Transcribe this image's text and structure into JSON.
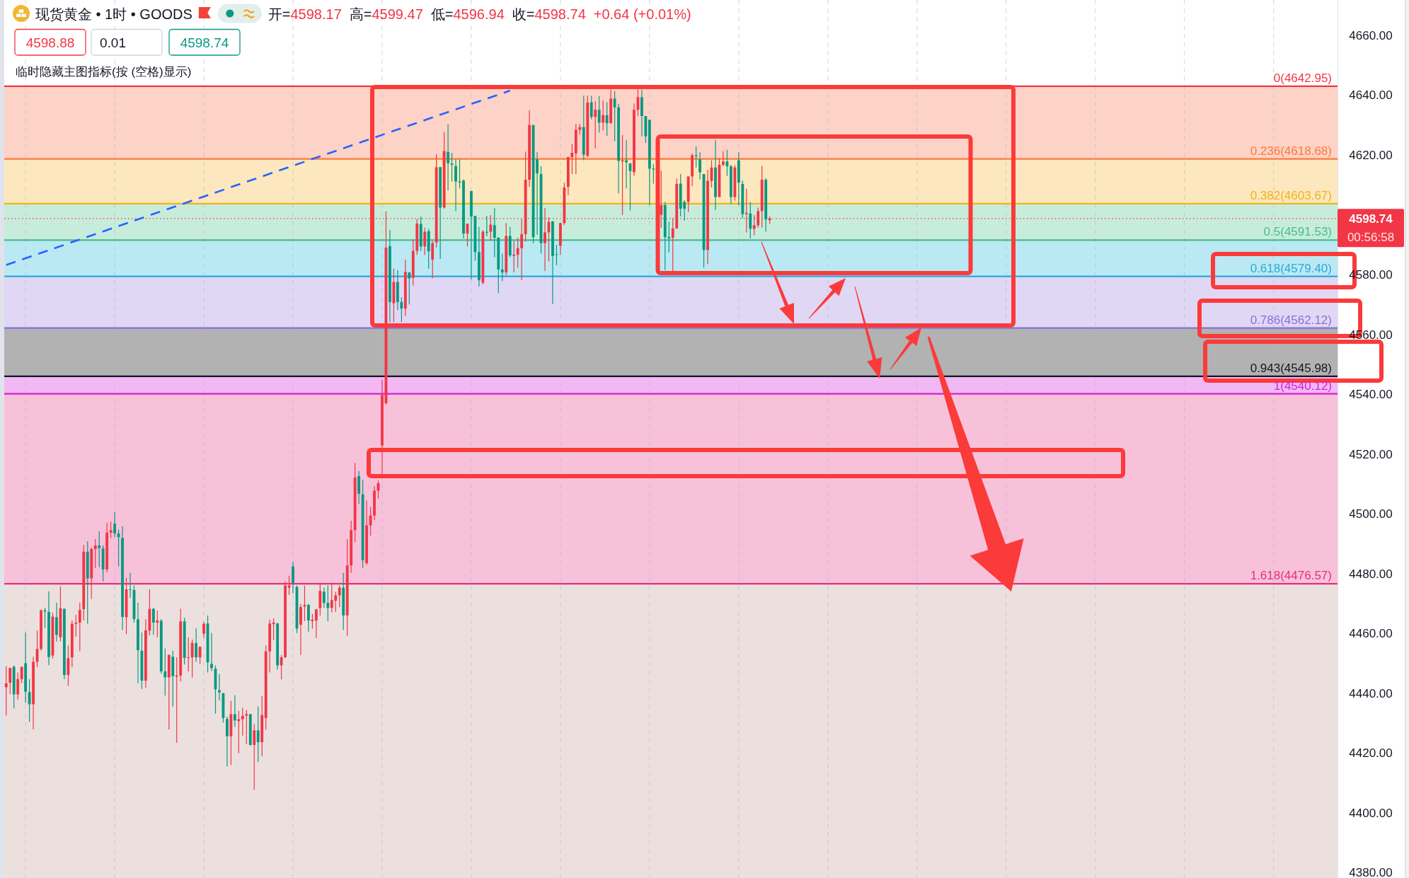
{
  "chart_data": {
    "type": "candlestick",
    "title": "现货黄金 • 1时 • GOODS",
    "subtitle": "临时隐藏主图指标(按 (空格)显示)",
    "annotations": [
      "开=4598.17",
      "高=4599.47",
      "低=4596.94",
      "收=4598.74",
      "+0.64 (+0.01%)",
      "4598.88",
      "0.01",
      "4598.74",
      "00:56:58"
    ],
    "categories": [
      null,
      null,
      null,
      null,
      null,
      null,
      null,
      null,
      null,
      null,
      null,
      null,
      null,
      null,
      null,
      null,
      null,
      null,
      null,
      null,
      null,
      null,
      null,
      null,
      null,
      null,
      null,
      null,
      null,
      null,
      null,
      null,
      null,
      null,
      null,
      null,
      null,
      null,
      null,
      null,
      null,
      null,
      null,
      null,
      null,
      null,
      null,
      null,
      null,
      null,
      null,
      null,
      null,
      null,
      null,
      null,
      null,
      null,
      null,
      null,
      null,
      null,
      null,
      null,
      null,
      null,
      null,
      null,
      null,
      null,
      null,
      null,
      null,
      null,
      null,
      null,
      null,
      null,
      null,
      null,
      null,
      null,
      null,
      null,
      null,
      null,
      null,
      null,
      null,
      null,
      null,
      null,
      null,
      null,
      null,
      null,
      null,
      null,
      null,
      null,
      null,
      null,
      null,
      null,
      null,
      null,
      null,
      null,
      null,
      null,
      null,
      null,
      null,
      null,
      null,
      null,
      null,
      null,
      null,
      null,
      null,
      null,
      null,
      null,
      null,
      null,
      null,
      null,
      null,
      null,
      null,
      null,
      null,
      null,
      null,
      null,
      null,
      null,
      null,
      null,
      null,
      null,
      null,
      null,
      null,
      null,
      null,
      null,
      null,
      null,
      null,
      null,
      null,
      null,
      null,
      null,
      null,
      null,
      null,
      null,
      null,
      null,
      null,
      null,
      null,
      null,
      null,
      null,
      null,
      null,
      null,
      null,
      null,
      null,
      null,
      null,
      null,
      null,
      null,
      null,
      null,
      null,
      null,
      null,
      null,
      null,
      null,
      null,
      null,
      null,
      null,
      null,
      null,
      null,
      null,
      null,
      null,
      null,
      null,
      null,
      null,
      null,
      null,
      null,
      null,
      null,
      null,
      null,
      null,
      null,
      null,
      null,
      null,
      null,
      null,
      null,
      null,
      null,
      null,
      null,
      null,
      null,
      null,
      null,
      null,
      null,
      null,
      null,
      null,
      null,
      null,
      null,
      null,
      null,
      null,
      null,
      null,
      null,
      null,
      null,
      null,
      null,
      null,
      null,
      null,
      null,
      null,
      null,
      null,
      null,
      null,
      null,
      null,
      null,
      null,
      null,
      null,
      null,
      null,
      null,
      null,
      null,
      null,
      null,
      null,
      null,
      null,
      null,
      null,
      null,
      null,
      null,
      null,
      null,
      null,
      null,
      null,
      null,
      null,
      null,
      null,
      null,
      null,
      null,
      null,
      null,
      null,
      null,
      null,
      null,
      null,
      null,
      null,
      null,
      null,
      null,
      null,
      null,
      null,
      null,
      null,
      null,
      null,
      null,
      null,
      null,
      null,
      null,
      null,
      null,
      null,
      null,
      null,
      null,
      null,
      null,
      null,
      null,
      null,
      null,
      null,
      null,
      null,
      null,
      null,
      null,
      null,
      null,
      null,
      null,
      null,
      null,
      null,
      null,
      null,
      null,
      null,
      null,
      null,
      null,
      null,
      null,
      null,
      null
    ],
    "ohlc": [
      [
        4442.0,
        4449.0,
        4432.5,
        4443.3
      ],
      [
        4443.5,
        4448.6,
        4439.7,
        4448.4
      ],
      [
        4448.8,
        4449.3,
        4434.9,
        4439.6
      ],
      [
        4439.6,
        4446.9,
        4437.8,
        4444.7
      ],
      [
        4444.7,
        4448.9,
        4443.4,
        4448.8
      ],
      [
        4450.0,
        4460.3,
        4436.8,
        4440.5
      ],
      [
        4440.4,
        4444.7,
        4430.4,
        4436.3
      ],
      [
        4436.3,
        4452.2,
        4427.9,
        4450.5
      ],
      [
        4450.5,
        4461.0,
        4448.7,
        4454.8
      ],
      [
        4454.8,
        4468.0,
        4454.2,
        4467.7
      ],
      [
        4467.7,
        4468.5,
        4461.8,
        4467.3
      ],
      [
        4467.2,
        4474.1,
        4449.4,
        4452.1
      ],
      [
        4452.6,
        4466.9,
        4451.6,
        4465.6
      ],
      [
        4465.4,
        4470.3,
        4457.3,
        4459.5
      ],
      [
        4458.7,
        4475.7,
        4457.3,
        4468.4
      ],
      [
        4468.2,
        4468.4,
        4444.7,
        4446.1
      ],
      [
        4446.1,
        4455.9,
        4442.5,
        4451.7
      ],
      [
        4452.0,
        4464.4,
        4448.7,
        4463.2
      ],
      [
        4463.2,
        4466.2,
        4458.9,
        4463.6
      ],
      [
        4463.6,
        4470.3,
        4454.0,
        4467.8
      ],
      [
        4468.1,
        4489.6,
        4464.4,
        4487.3
      ],
      [
        4487.3,
        4490.8,
        4463.2,
        4478.4
      ],
      [
        4478.4,
        4488.7,
        4471.5,
        4488.2
      ],
      [
        4488.2,
        4491.5,
        4481.8,
        4489.4
      ],
      [
        4489.4,
        4494.1,
        4482.2,
        4488.5
      ],
      [
        4488.4,
        4489.4,
        4477.4,
        4481.4
      ],
      [
        4481.4,
        4497.0,
        4480.4,
        4493.7
      ],
      [
        4493.7,
        4497.3,
        4491.8,
        4494.5
      ],
      [
        4496.7,
        4500.5,
        4492.2,
        4493.4
      ],
      [
        4493.4,
        4494.7,
        4482.4,
        4492.2
      ],
      [
        4491.9,
        4495.8,
        4461.1,
        4465.5
      ],
      [
        4465.4,
        4478.6,
        4459.7,
        4474.7
      ],
      [
        4474.7,
        4480.2,
        4471.9,
        4474.5
      ],
      [
        4474.5,
        4476.0,
        4463.6,
        4464.8
      ],
      [
        4464.7,
        4470.3,
        4443.4,
        4454.4
      ],
      [
        4454.2,
        4460.3,
        4441.4,
        4444.2
      ],
      [
        4444.2,
        4464.8,
        4441.8,
        4461.0
      ],
      [
        4460.9,
        4474.7,
        4459.3,
        4468.2
      ],
      [
        4468.2,
        4468.5,
        4459.5,
        4463.6
      ],
      [
        4463.6,
        4467.6,
        4458.7,
        4464.3
      ],
      [
        4464.2,
        4464.8,
        4446.5,
        4447.3
      ],
      [
        4447.3,
        4455.0,
        4439.2,
        4445.3
      ],
      [
        4445.3,
        4452.9,
        4427.9,
        4452.8
      ],
      [
        4452.2,
        4454.2,
        4435.6,
        4445.7
      ],
      [
        4445.5,
        4452.0,
        4423.4,
        4445.9
      ],
      [
        4445.9,
        4468.2,
        4443.9,
        4464.0
      ],
      [
        4464.0,
        4465.2,
        4449.6,
        4451.8
      ],
      [
        4451.8,
        4458.7,
        4447.2,
        4452.0
      ],
      [
        4452.0,
        4457.9,
        4445.3,
        4456.8
      ],
      [
        4456.8,
        4461.7,
        4450.5,
        4452.0
      ],
      [
        4452.0,
        4455.7,
        4449.8,
        4455.5
      ],
      [
        4459.9,
        4463.9,
        4458.5,
        4463.2
      ],
      [
        4463.3,
        4466.0,
        4446.9,
        4450.3
      ],
      [
        4449.8,
        4460.1,
        4447.4,
        4448.4
      ],
      [
        4448.2,
        4449.3,
        4433.2,
        4441.3
      ],
      [
        4441.0,
        4446.4,
        4437.6,
        4440.3
      ],
      [
        4440.0,
        4440.0,
        4430.2,
        4431.7
      ],
      [
        4431.4,
        4432.2,
        4415.5,
        4425.6
      ],
      [
        4425.6,
        4437.4,
        4416.0,
        4433.0
      ],
      [
        4433.0,
        4439.3,
        4428.7,
        4430.9
      ],
      [
        4430.7,
        4434.1,
        4419.9,
        4431.3
      ],
      [
        4431.3,
        4435.1,
        4425.8,
        4432.4
      ],
      [
        4432.5,
        4434.4,
        4422.9,
        4433.0
      ],
      [
        4433.0,
        4433.0,
        4422.4,
        4422.7
      ],
      [
        4422.7,
        4429.7,
        4407.7,
        4427.6
      ],
      [
        4427.6,
        4435.6,
        4417.0,
        4423.6
      ],
      [
        4423.6,
        4439.0,
        4418.9,
        4432.7
      ],
      [
        4431.7,
        4456.0,
        4427.8,
        4454.0
      ],
      [
        4454.0,
        4464.6,
        4446.9,
        4463.3
      ],
      [
        4463.1,
        4465.0,
        4457.7,
        4463.6
      ],
      [
        4463.3,
        4463.6,
        4447.9,
        4449.3
      ],
      [
        4449.3,
        4452.8,
        4444.6,
        4452.0
      ],
      [
        4452.0,
        4477.3,
        4451.8,
        4476.0
      ],
      [
        4475.3,
        4479.3,
        4472.9,
        4476.0
      ],
      [
        4482.4,
        4483.9,
        4473.4,
        4476.8
      ],
      [
        4475.5,
        4476.0,
        4460.1,
        4461.6
      ],
      [
        4462.9,
        4469.9,
        4452.8,
        4468.8
      ],
      [
        4469.0,
        4476.0,
        4464.1,
        4469.5
      ],
      [
        4469.5,
        4469.9,
        4460.6,
        4464.3
      ],
      [
        4464.1,
        4466.5,
        4461.6,
        4464.6
      ],
      [
        4464.3,
        4468.2,
        4458.4,
        4468.0
      ],
      [
        4468.5,
        4477.0,
        4466.0,
        4474.2
      ],
      [
        4473.9,
        4475.3,
        4468.5,
        4470.2
      ],
      [
        4470.2,
        4476.0,
        4464.1,
        4468.5
      ],
      [
        4468.5,
        4477.0,
        4467.0,
        4471.1
      ],
      [
        4470.9,
        4473.9,
        4467.2,
        4472.7
      ],
      [
        4472.7,
        4476.0,
        4468.8,
        4475.3
      ],
      [
        4475.3,
        4480.2,
        4461.1,
        4466.0
      ],
      [
        4466.0,
        4491.5,
        4459.2,
        4482.7
      ],
      [
        4482.7,
        4497.7,
        4480.2,
        4494.5
      ],
      [
        4494.5,
        4517.0,
        4490.5,
        4512.1
      ],
      [
        4512.6,
        4514.3,
        4503.3,
        4506.7
      ],
      [
        4506.5,
        4511.3,
        4481.9,
        4484.5
      ],
      [
        4483.5,
        4504.5,
        4482.9,
        4496.1
      ],
      [
        4496.1,
        4502.3,
        4492.7,
        4499.4
      ],
      [
        4499.4,
        4509.2,
        4497.9,
        4507.7
      ],
      [
        4507.7,
        4511.1,
        4505.1,
        4510.2
      ],
      [
        4522.8,
        4544.8,
        4513.3,
        4539.7
      ],
      [
        4537.0,
        4601.2,
        4536.5,
        4589.0
      ],
      [
        4589.5,
        4594.9,
        4564.1,
        4570.8
      ],
      [
        4570.4,
        4582.0,
        4564.1,
        4577.5
      ],
      [
        4577.5,
        4581.5,
        4568.1,
        4570.8
      ],
      [
        4570.8,
        4572.4,
        4564.1,
        4568.6
      ],
      [
        4568.6,
        4585.0,
        4566.1,
        4580.9
      ],
      [
        4580.7,
        4580.7,
        4570.0,
        4578.7
      ],
      [
        4578.9,
        4591.7,
        4576.3,
        4587.9
      ],
      [
        4587.9,
        4598.6,
        4586.6,
        4597.0
      ],
      [
        4596.9,
        4599.4,
        4587.9,
        4589.4
      ],
      [
        4589.4,
        4595.7,
        4586.5,
        4594.3
      ],
      [
        4594.5,
        4595.3,
        4581.9,
        4587.8
      ],
      [
        4585.0,
        4591.3,
        4578.7,
        4590.5
      ],
      [
        4590.7,
        4620.3,
        4589.0,
        4615.9
      ],
      [
        4615.9,
        4616.0,
        4585.2,
        4602.4
      ],
      [
        4602.4,
        4627.6,
        4602.0,
        4621.3
      ],
      [
        4621.0,
        4630.2,
        4608.1,
        4617.2
      ],
      [
        4617.1,
        4620.7,
        4611.1,
        4616.7
      ],
      [
        4616.3,
        4618.5,
        4601.2,
        4611.1
      ],
      [
        4611.1,
        4618.5,
        4608.8,
        4610.8
      ],
      [
        4611.4,
        4611.8,
        4592.1,
        4593.7
      ],
      [
        4593.7,
        4597.0,
        4589.4,
        4597.0
      ],
      [
        4607.9,
        4608.0,
        4578.3,
        4599.4
      ],
      [
        4599.6,
        4599.6,
        4584.6,
        4587.5
      ],
      [
        4587.5,
        4595.9,
        4576.0,
        4578.1
      ],
      [
        4577.3,
        4594.9,
        4576.7,
        4594.3
      ],
      [
        4594.3,
        4599.6,
        4592.8,
        4594.0
      ],
      [
        4594.3,
        4599.9,
        4591.3,
        4596.7
      ],
      [
        4596.5,
        4602.2,
        4585.8,
        4592.3
      ],
      [
        4592.3,
        4592.5,
        4573.8,
        4581.7
      ],
      [
        4581.7,
        4587.0,
        4577.8,
        4580.7
      ],
      [
        4580.7,
        4597.2,
        4579.7,
        4592.9
      ],
      [
        4592.9,
        4595.9,
        4585.8,
        4586.4
      ],
      [
        4586.2,
        4591.3,
        4580.7,
        4586.6
      ],
      [
        4586.6,
        4592.3,
        4582.3,
        4588.8
      ],
      [
        4588.8,
        4598.6,
        4578.1,
        4593.5
      ],
      [
        4593.5,
        4621.1,
        4591.0,
        4611.7
      ],
      [
        4611.7,
        4634.9,
        4609.3,
        4630.0
      ],
      [
        4630.0,
        4630.0,
        4590.5,
        4592.5
      ],
      [
        4618.5,
        4620.9,
        4593.3,
        4613.8
      ],
      [
        4613.6,
        4616.2,
        4587.0,
        4590.5
      ],
      [
        4590.5,
        4602.2,
        4581.2,
        4594.1
      ],
      [
        4594.1,
        4599.1,
        4584.4,
        4597.6
      ],
      [
        4597.8,
        4597.8,
        4570.2,
        4586.2
      ],
      [
        4586.8,
        4589.9,
        4583.1,
        4586.6
      ],
      [
        4589.6,
        4597.2,
        4586.6,
        4597.2
      ],
      [
        4597.2,
        4610.7,
        4596.5,
        4609.1
      ],
      [
        4609.3,
        4619.3,
        4606.5,
        4619.3
      ],
      [
        4619.3,
        4623.7,
        4613.6,
        4620.7
      ],
      [
        4620.5,
        4630.4,
        4613.6,
        4628.4
      ],
      [
        4628.4,
        4630.4,
        4626.8,
        4629.3
      ],
      [
        4629.3,
        4639.8,
        4618.2,
        4620.1
      ],
      [
        4619.7,
        4639.8,
        4619.3,
        4637.5
      ],
      [
        4637.6,
        4639.8,
        4631.9,
        4632.7
      ],
      [
        4632.7,
        4638.0,
        4622.2,
        4635.1
      ],
      [
        4635.1,
        4639.6,
        4627.5,
        4630.8
      ],
      [
        4630.8,
        4638.2,
        4628.2,
        4633.3
      ],
      [
        4633.3,
        4637.6,
        4626.4,
        4630.6
      ],
      [
        4630.6,
        4641.9,
        4630.5,
        4638.8
      ],
      [
        4638.8,
        4641.4,
        4624.6,
        4635.9
      ],
      [
        4635.9,
        4637.1,
        4607.1,
        4618.0
      ],
      [
        4617.8,
        4626.7,
        4599.9,
        4618.2
      ],
      [
        4618.2,
        4624.9,
        4608.8,
        4617.5
      ],
      [
        4617.2,
        4617.2,
        4601.4,
        4614.6
      ],
      [
        4614.2,
        4637.2,
        4613.0,
        4635.1
      ],
      [
        4635.1,
        4641.9,
        4633.1,
        4639.3
      ],
      [
        4639.3,
        4641.8,
        4626.2,
        4633.0
      ],
      [
        4633.0,
        4633.0,
        4624.0,
        4626.2
      ],
      [
        4631.7,
        4631.7,
        4603.2,
        4615.4
      ],
      [
        4615.4,
        4617.0,
        4610.4,
        4615.1
      ],
      null,
      [
        4600.0,
        4614.8,
        4595.7,
        4603.2
      ],
      [
        4603.2,
        4604.3,
        4581.5,
        4592.5
      ],
      [
        4592.5,
        4597.7,
        4587.4,
        4592.1
      ],
      [
        4592.3,
        4598.8,
        4581.1,
        4595.4
      ],
      [
        4595.4,
        4612.1,
        4595.3,
        4610.3
      ],
      [
        4610.4,
        4613.6,
        4599.4,
        4602.0
      ],
      [
        4604.3,
        4604.9,
        4598.0,
        4602.0
      ],
      [
        4604.3,
        4612.8,
        4600.8,
        4612.8
      ],
      [
        4612.8,
        4620.5,
        4609.5,
        4619.9
      ],
      [
        4619.9,
        4622.9,
        4615.8,
        4619.6
      ],
      [
        4618.5,
        4620.9,
        4611.8,
        4614.2
      ],
      [
        4613.6,
        4613.6,
        4582.3,
        4588.2
      ],
      [
        4588.2,
        4615.0,
        4583.5,
        4611.3
      ],
      [
        4611.3,
        4618.2,
        4609.1,
        4615.8
      ],
      [
        4615.8,
        4625.1,
        4601.6,
        4605.9
      ],
      [
        4605.9,
        4618.9,
        4605.9,
        4616.7
      ],
      [
        4616.7,
        4621.3,
        4616.2,
        4617.8
      ],
      [
        4617.8,
        4621.7,
        4613.0,
        4616.2
      ],
      [
        4616.2,
        4616.6,
        4603.6,
        4605.9
      ],
      [
        4605.9,
        4616.6,
        4604.7,
        4615.8
      ],
      [
        4618.2,
        4620.9,
        4603.2,
        4610.7
      ],
      [
        4610.3,
        4611.4,
        4598.8,
        4600.2
      ],
      [
        4600.2,
        4608.7,
        4594.1,
        4600.6
      ],
      [
        4600.4,
        4604.3,
        4592.1,
        4595.3
      ],
      [
        4595.3,
        4599.9,
        4593.1,
        4596.5
      ],
      [
        4596.5,
        4602.4,
        4595.7,
        4601.2
      ],
      [
        4601.2,
        4616.3,
        4595.7,
        4611.7
      ],
      [
        4611.7,
        4612.2,
        4594.3,
        4598.4
      ],
      [
        4598.17,
        4599.47,
        4596.94,
        4598.74
      ],
      null,
      null,
      null,
      null,
      null,
      null,
      null,
      null,
      null,
      null,
      null,
      null,
      null,
      null,
      null,
      null,
      null,
      null,
      null,
      null,
      null,
      null,
      null,
      null,
      null,
      null,
      null,
      null,
      null,
      null,
      null,
      null,
      null,
      null,
      null,
      null,
      null,
      null,
      null,
      null,
      null,
      null,
      null,
      null,
      null,
      null,
      null,
      null,
      null,
      null,
      null,
      null,
      null,
      null,
      null,
      null,
      null,
      null,
      null,
      null,
      null,
      null,
      null,
      null,
      null,
      null,
      null,
      null,
      null,
      null,
      null,
      null,
      null,
      null,
      null,
      null,
      null,
      null,
      null,
      null,
      null,
      null,
      null,
      null,
      null,
      null,
      null,
      null,
      null,
      null,
      null,
      null,
      null,
      null,
      null,
      null,
      null,
      null,
      null,
      null,
      null,
      null,
      null,
      null,
      null,
      null,
      null,
      null,
      null,
      null,
      null,
      null,
      null,
      null,
      null,
      null,
      null,
      null,
      null,
      null,
      null,
      null,
      null,
      null,
      null,
      null,
      null,
      null,
      null,
      null,
      null,
      null,
      null,
      null,
      null,
      null,
      null,
      null,
      null,
      null,
      null,
      null,
      null,
      null,
      null,
      null
    ],
    "colors": [
      "#f23645",
      "#f23645",
      "#089981",
      "#f23645",
      "#f23645",
      "#089981",
      "#089981",
      "#f23645",
      "#f23645",
      "#f23645",
      "#089981",
      "#089981",
      "#f23645",
      "#089981",
      "#f23645",
      "#089981",
      "#f23645",
      "#f23645",
      "#f23645",
      "#f23645",
      "#f23645",
      "#089981",
      "#f23645",
      "#f23645",
      "#089981",
      "#089981",
      "#f23645",
      "#f23645",
      "#089981",
      "#089981",
      "#089981",
      "#f23645",
      "#089981",
      "#089981",
      "#089981",
      "#089981",
      "#f23645",
      "#f23645",
      "#089981",
      "#f23645",
      "#089981",
      "#089981",
      "#f23645",
      "#089981",
      "#f23645",
      "#f23645",
      "#089981",
      "#f23645",
      "#f23645",
      "#089981",
      "#f23645",
      "#f23645",
      "#089981",
      "#089981",
      "#089981",
      "#089981",
      "#089981",
      "#089981",
      "#f23645",
      "#089981",
      "#f23645",
      "#f23645",
      "#f23645",
      "#089981",
      "#f23645",
      "#089981",
      "#f23645",
      "#f23645",
      "#f23645",
      "#f23645",
      "#089981",
      "#f23645",
      "#f23645",
      "#f23645",
      "#089981",
      "#089981",
      "#f23645",
      "#f23645",
      "#089981",
      "#f23645",
      "#f23645",
      "#f23645",
      "#089981",
      "#089981",
      "#f23645",
      "#f23645",
      "#f23645",
      "#089981",
      "#f23645",
      "#f23645",
      "#f23645",
      "#089981",
      "#089981",
      "#f23645",
      "#f23645",
      "#f23645",
      "#f23645",
      "#f23645",
      "#f23645",
      "#089981",
      "#f23645",
      "#089981",
      "#089981",
      "#f23645",
      "#089981",
      "#f23645",
      "#f23645",
      "#089981",
      "#f23645",
      "#089981",
      "#f23645",
      "#f23645",
      "#089981",
      "#f23645",
      "#089981",
      "#089981",
      "#089981",
      "#089981",
      "#089981",
      "#f23645",
      "#089981",
      "#089981",
      "#089981",
      "#f23645",
      "#089981",
      "#f23645",
      "#089981",
      "#089981",
      "#089981",
      "#f23645",
      "#089981",
      "#f23645",
      "#f23645",
      "#f23645",
      "#f23645",
      "#f23645",
      "#089981",
      "#089981",
      "#089981",
      "#f23645",
      "#f23645",
      "#089981",
      "#089981",
      "#f23645",
      "#f23645",
      "#f23645",
      "#f23645",
      "#f23645",
      "#f23645",
      "#089981",
      "#f23645",
      "#089981",
      "#f23645",
      "#089981",
      "#f23645",
      "#089981",
      "#f23645",
      "#089981",
      "#089981",
      "#f23645",
      "#089981",
      "#089981",
      "#f23645",
      "#f23645",
      "#089981",
      "#089981",
      "#089981",
      "#089981",
      null,
      "#f23645",
      "#089981",
      "#089981",
      "#f23645",
      "#f23645",
      "#089981",
      "#089981",
      "#f23645",
      "#f23645",
      "#089981",
      "#089981",
      "#089981",
      "#f23645",
      "#f23645",
      "#089981",
      "#f23645",
      "#f23645",
      "#089981",
      "#089981",
      "#f23645",
      "#089981",
      "#089981",
      "#f23645",
      "#089981",
      "#f23645",
      "#f23645",
      "#f23645",
      "#089981",
      "#f23645",
      null,
      null,
      null,
      null,
      null,
      null,
      null,
      null,
      null,
      null,
      null,
      null,
      null,
      null,
      null,
      null,
      null,
      null,
      null,
      null,
      null,
      null,
      null,
      null,
      null,
      null,
      null,
      null,
      null,
      null,
      null,
      null,
      null,
      null,
      null,
      null,
      null,
      null,
      null,
      null,
      null,
      null,
      null,
      null,
      null,
      null,
      null,
      null,
      null,
      null,
      null,
      null,
      null,
      null,
      null,
      null,
      null,
      null,
      null,
      null,
      null,
      null,
      null,
      null,
      null,
      null,
      null,
      null,
      null,
      null,
      null,
      null,
      null,
      null,
      null,
      null,
      null,
      null,
      null,
      null,
      null,
      null,
      null,
      null,
      null,
      null,
      null,
      null,
      null,
      null,
      null,
      null,
      null,
      null,
      null,
      null,
      null,
      null,
      null,
      null,
      null,
      null,
      null,
      null,
      null,
      null,
      null,
      null,
      null,
      null,
      null,
      null,
      null,
      null,
      null,
      null,
      null,
      null,
      null,
      null,
      null,
      null,
      null,
      null,
      null,
      null,
      null,
      null,
      null,
      null,
      null,
      null,
      null,
      null,
      null,
      null,
      null,
      null,
      null,
      null,
      null,
      null,
      null,
      null,
      null,
      null
    ],
    "series": [
      {
        "type": "line",
        "color": "#2962ff",
        "line_style": "dashed",
        "values": [
          4583.2,
          null,
          null,
          null,
          null,
          null,
          null,
          null,
          null,
          null,
          null,
          null,
          null,
          null,
          null,
          null,
          null,
          null,
          null,
          null,
          null,
          null,
          null,
          null,
          null,
          null,
          null,
          null,
          null,
          null,
          null,
          null,
          null,
          null,
          null,
          null,
          null,
          null,
          null,
          null,
          null,
          null,
          null,
          null,
          null,
          null,
          null,
          null,
          null,
          null,
          null,
          null,
          null,
          null,
          null,
          null,
          null,
          null,
          null,
          null,
          null,
          null,
          null,
          null,
          null,
          null,
          null,
          null,
          null,
          null,
          null,
          null,
          null,
          null,
          null,
          null,
          null,
          null,
          null,
          null,
          null,
          null,
          null,
          null,
          null,
          null,
          null,
          null,
          null,
          null,
          null,
          null,
          null,
          null,
          null,
          null,
          null,
          null,
          null,
          null,
          null,
          null,
          null,
          null,
          null,
          null,
          null,
          null,
          null,
          null,
          null,
          null,
          null,
          null,
          null,
          null,
          null,
          null,
          null,
          null,
          null,
          null,
          null,
          null,
          null,
          null,
          null,
          null,
          null,
          null,
          4641.5,
          null,
          null,
          null,
          null,
          null,
          null,
          null,
          null,
          null,
          null,
          null,
          null,
          null,
          null,
          null,
          null,
          null,
          null,
          null,
          null,
          null,
          null,
          null,
          null,
          null,
          null,
          null,
          null,
          null,
          null,
          null,
          null,
          null,
          null,
          null,
          null,
          null,
          null,
          null,
          null,
          null,
          null,
          null,
          null,
          null,
          null,
          null,
          null,
          null,
          null,
          null,
          null,
          null,
          null,
          null,
          null,
          null,
          null,
          null,
          null,
          null,
          null,
          null,
          null,
          null,
          null,
          null,
          null,
          null,
          null,
          null,
          null,
          null,
          null,
          null,
          null,
          null,
          null,
          null,
          null,
          null,
          null,
          null,
          null,
          null,
          null,
          null,
          null,
          null,
          null,
          null,
          null,
          null,
          null,
          null,
          null,
          null,
          null,
          null,
          null,
          null,
          null,
          null,
          null,
          null,
          null,
          null,
          null,
          null,
          null,
          null,
          null,
          null,
          null,
          null,
          null,
          null,
          null,
          null,
          null,
          null,
          null,
          null,
          null,
          null,
          null,
          null,
          null,
          null,
          null,
          null,
          null,
          null,
          null,
          null,
          null,
          null,
          null,
          null,
          null,
          null,
          null,
          null,
          null,
          null,
          null,
          null,
          null,
          null,
          null,
          null,
          null,
          null,
          null,
          null,
          null,
          null,
          null,
          null,
          null,
          null,
          null,
          null,
          null,
          null,
          null,
          null,
          null,
          null,
          null,
          null,
          null,
          null,
          null,
          null,
          null,
          null,
          null,
          null,
          null,
          null,
          null,
          null,
          null,
          null,
          null,
          null,
          null,
          null,
          null,
          null,
          null,
          null,
          null,
          null,
          null,
          null,
          null,
          null,
          null,
          null,
          null,
          null,
          null,
          null,
          null,
          null,
          null,
          null,
          null,
          null,
          null,
          null
        ]
      }
    ],
    "ylim": [
      4378.2,
      4671.8
    ],
    "yticks": [
      {
        "value": 4380,
        "label": "4380.00"
      },
      {
        "value": 4400,
        "label": "4400.00"
      },
      {
        "value": 4420,
        "label": "4420.00"
      },
      {
        "value": 4440,
        "label": "4440.00"
      },
      {
        "value": 4460,
        "label": "4460.00"
      },
      {
        "value": 4480,
        "label": "4480.00"
      },
      {
        "value": 4500,
        "label": "4500.00"
      },
      {
        "value": 4520,
        "label": "4520.00"
      },
      {
        "value": 4540,
        "label": "4540.00"
      },
      {
        "value": 4560,
        "label": "4560.00"
      },
      {
        "value": 4580,
        "label": "4580.00"
      },
      {
        "value": 4620,
        "label": "4620.00"
      },
      {
        "value": 4640,
        "label": "4640.00"
      },
      {
        "value": 4660,
        "label": "4660.00"
      }
    ],
    "tick_labels": "y",
    "bands": [
      {
        "axis": "y",
        "from": 4618.68,
        "to": 4642.95,
        "color": "#fdd3c7"
      },
      {
        "axis": "y",
        "from": 4603.67,
        "to": 4618.68,
        "color": "#fde7be"
      },
      {
        "axis": "y",
        "from": 4591.53,
        "to": 4603.67,
        "color": "#c8ecdb"
      },
      {
        "axis": "y",
        "from": 4579.4,
        "to": 4591.53,
        "color": "#bbe9f3"
      },
      {
        "axis": "y",
        "from": 4562.12,
        "to": 4579.4,
        "color": "#e0d7f5"
      },
      {
        "axis": "y",
        "from": 4545.98,
        "to": 4562.12,
        "color": "#b2b2b2"
      },
      {
        "axis": "y",
        "from": 4540.12,
        "to": 4545.98,
        "color": "#f1b8f4"
      },
      {
        "axis": "y",
        "from": 4476.57,
        "to": 4540.12,
        "color": "#f7c1da"
      },
      {
        "axis": "y",
        "from": 4378.2,
        "to": 4476.57,
        "color": "#ece0df"
      }
    ],
    "ref_lines": [
      {
        "axis": "y",
        "value": 4642.95,
        "label": "0(4642.95)",
        "color": "#f23645"
      },
      {
        "axis": "y",
        "value": 4618.68,
        "label": "0.236(4618.68)",
        "color": "#fb7a3c"
      },
      {
        "axis": "y",
        "value": 4603.67,
        "label": "0.382(4603.67)",
        "color": "#f2b21a"
      },
      {
        "axis": "y",
        "value": 4591.53,
        "label": "0.5(4591.53)",
        "color": "#45be8c"
      },
      {
        "axis": "y",
        "value": 4579.4,
        "label": "0.618(4579.40)",
        "color": "#2aa9dc"
      },
      {
        "axis": "y",
        "value": 4562.12,
        "label": "0.786(4562.12)",
        "color": "#8c6fd6"
      },
      {
        "axis": "y",
        "value": 4545.98,
        "label": "0.943(4545.98)",
        "color": "#131722"
      },
      {
        "axis": "y",
        "value": 4540.12,
        "label": "1(4540.12)",
        "color": "#d620d6"
      },
      {
        "axis": "y",
        "value": 4476.57,
        "label": "1.618(4476.57)",
        "color": "#e5307a"
      },
      {
        "axis": "y",
        "value": 4598.74,
        "label": "4598.74",
        "color": "#f23645",
        "line_style": "dotted"
      }
    ]
  }
}
